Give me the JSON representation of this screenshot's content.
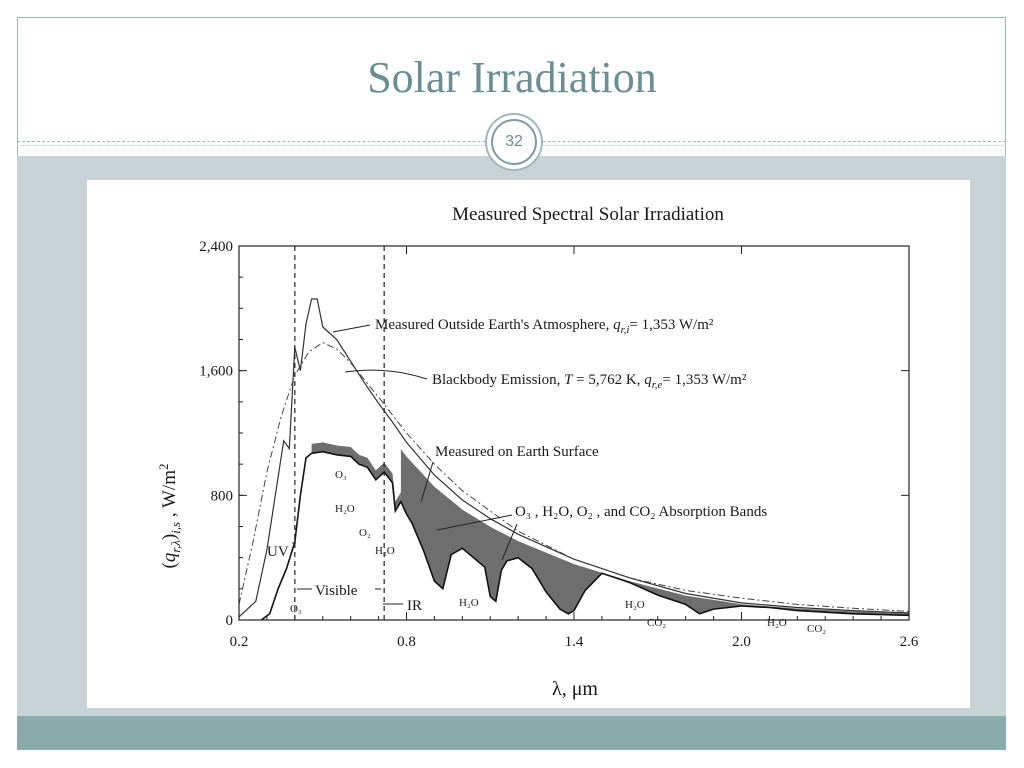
{
  "slide": {
    "title": "Solar Irradiation",
    "page_number": "32",
    "colors": {
      "title": "#6a8e93",
      "band": "#c7d3d7",
      "footer": "#8aabac",
      "fill": "#6e6e6e"
    }
  },
  "chart_data": {
    "type": "line",
    "title": "Measured Spectral Solar Irradiation",
    "xlabel": "λ, μm",
    "ylabel": "(q_{r,λ})_{i,s} , W/m²",
    "xlim": [
      0.2,
      2.6
    ],
    "ylim": [
      0,
      2400
    ],
    "x_ticks": [
      "0.2",
      "0.8",
      "1.4",
      "2.0",
      "2.6"
    ],
    "y_ticks": [
      "0",
      "800",
      "1,600",
      "2,400"
    ],
    "grid": false,
    "dashed_boundaries": [
      0.4,
      0.72
    ],
    "series": [
      {
        "name": "Measured Outside Earth's Atmosphere, q_{r,i} = 1,353 W/m²",
        "x": [
          0.2,
          0.26,
          0.3,
          0.33,
          0.36,
          0.38,
          0.4,
          0.42,
          0.44,
          0.46,
          0.48,
          0.5,
          0.55,
          0.6,
          0.65,
          0.7,
          0.75,
          0.8,
          0.9,
          1.0,
          1.1,
          1.2,
          1.4,
          1.6,
          1.8,
          2.0,
          2.2,
          2.4,
          2.6
        ],
        "y": [
          20,
          120,
          450,
          800,
          1150,
          1100,
          1750,
          1600,
          1900,
          2060,
          2060,
          1880,
          1800,
          1660,
          1520,
          1390,
          1270,
          1140,
          930,
          770,
          650,
          550,
          390,
          270,
          170,
          110,
          80,
          60,
          45
        ]
      },
      {
        "name": "Blackbody Emission, T = 5,762 K, q_{r,e} = 1,353 W/m²",
        "x": [
          0.2,
          0.25,
          0.3,
          0.35,
          0.4,
          0.45,
          0.5,
          0.55,
          0.6,
          0.7,
          0.8,
          0.9,
          1.0,
          1.2,
          1.4,
          1.6,
          1.8,
          2.0,
          2.2,
          2.4,
          2.6
        ],
        "y": [
          100,
          500,
          950,
          1300,
          1570,
          1720,
          1780,
          1740,
          1650,
          1430,
          1200,
          1000,
          830,
          570,
          390,
          270,
          190,
          140,
          100,
          75,
          55
        ]
      },
      {
        "name": "Measured on Earth Surface",
        "x": [
          0.28,
          0.31,
          0.34,
          0.37,
          0.4,
          0.42,
          0.44,
          0.46,
          0.5,
          0.55,
          0.6,
          0.63,
          0.66,
          0.69,
          0.72,
          0.75,
          0.76,
          0.78,
          0.8,
          0.82,
          0.86,
          0.9,
          0.93,
          0.96,
          1.0,
          1.08,
          1.1,
          1.12,
          1.14,
          1.16,
          1.2,
          1.25,
          1.3,
          1.35,
          1.38,
          1.4,
          1.44,
          1.5,
          1.55,
          1.6,
          1.7,
          1.8,
          1.85,
          1.9,
          2.0,
          2.1,
          2.2,
          2.4,
          2.6
        ],
        "y": [
          0,
          40,
          200,
          330,
          500,
          800,
          1040,
          1070,
          1080,
          1060,
          1050,
          1000,
          980,
          900,
          950,
          880,
          700,
          760,
          680,
          620,
          450,
          250,
          200,
          420,
          460,
          340,
          150,
          120,
          320,
          380,
          400,
          330,
          180,
          70,
          40,
          60,
          190,
          300,
          270,
          240,
          160,
          100,
          40,
          70,
          90,
          80,
          60,
          40,
          30
        ]
      }
    ],
    "annotations": {
      "o3_top": "O₃",
      "h2o_a": "H₂O",
      "o2": "O₂",
      "h2o_b": "H₂O",
      "bands": "O₃ , H₂O, O₂ , and CO₂ Absorption Bands",
      "uv": "UV",
      "visible": "Visible",
      "ir": "IR",
      "o3_bottom": "O₃",
      "h2o_c": "H₂O",
      "h2o_d": "H₂O",
      "co2_a": "CO₂",
      "h2o_e": "H₂O",
      "co2_b": "CO₂"
    },
    "series_labels": {
      "outside": "Measured Outside Earth's Atmosphere,",
      "outside_tail": "= 1,353 W/m²",
      "outside_q": "q",
      "outside_sub": "r,i",
      "blackbody": "Blackbody Emission,",
      "blackbody_T": "T",
      "blackbody_mid": "= 5,762 K,",
      "blackbody_q": "q",
      "blackbody_sub": "r,e",
      "blackbody_tail": "= 1,353 W/m²",
      "surface": "Measured on Earth Surface"
    }
  }
}
